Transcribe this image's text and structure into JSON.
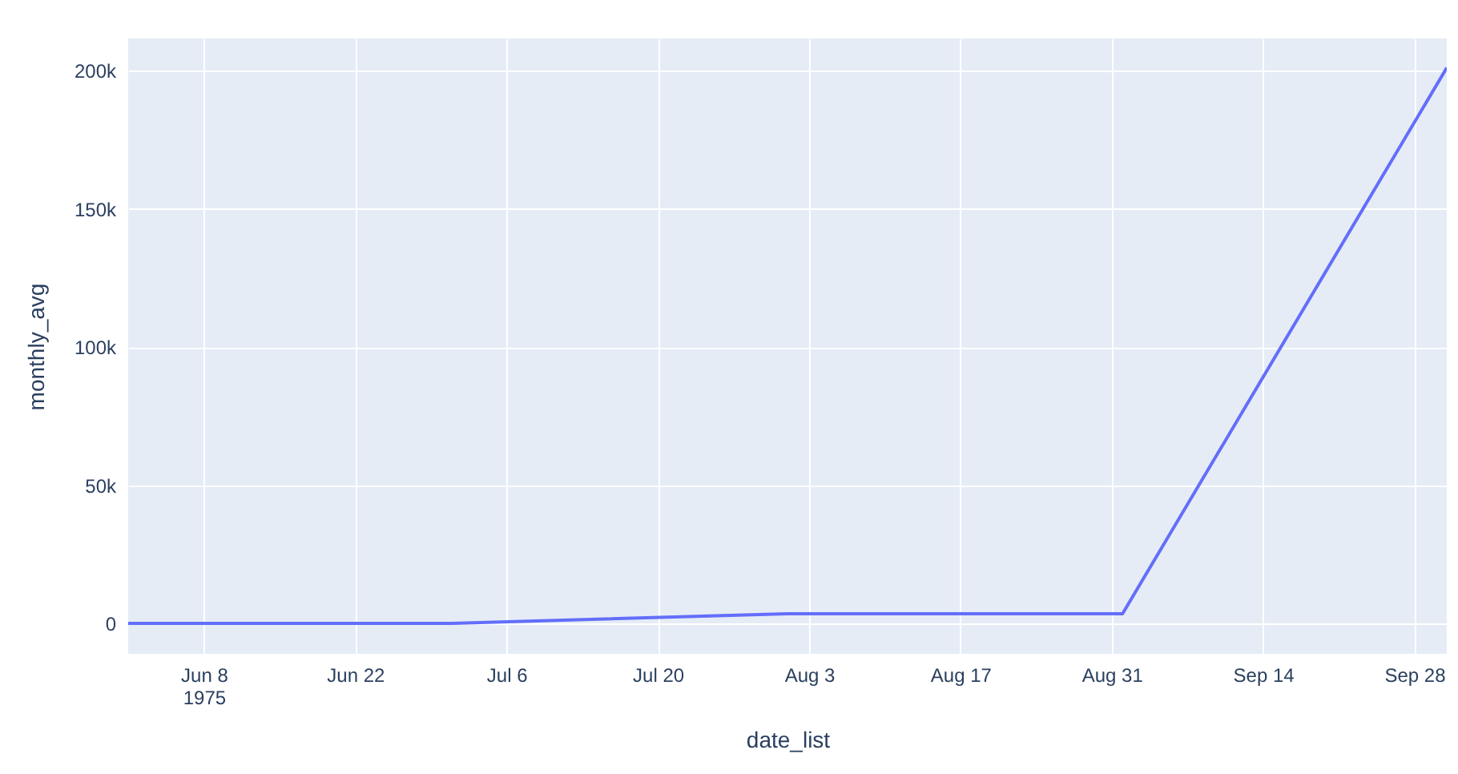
{
  "chart_data": {
    "type": "line",
    "xlabel": "date_list",
    "ylabel": "monthly_avg",
    "x": [
      "1975-06-01",
      "1975-07-01",
      "1975-08-01",
      "1975-09-01",
      "1975-10-01"
    ],
    "series": [
      {
        "color": "#636efa",
        "values": [
          0,
          0,
          3500,
          3500,
          201000
        ]
      }
    ],
    "xlim": [
      "1975-06-01",
      "1975-10-01"
    ],
    "xticks": [
      {
        "value": "1975-06-08",
        "label": "Jun 8\n1975"
      },
      {
        "value": "1975-06-22",
        "label": "Jun 22"
      },
      {
        "value": "1975-07-06",
        "label": "Jul 6"
      },
      {
        "value": "1975-07-20",
        "label": "Jul 20"
      },
      {
        "value": "1975-08-03",
        "label": "Aug 3"
      },
      {
        "value": "1975-08-17",
        "label": "Aug 17"
      },
      {
        "value": "1975-08-31",
        "label": "Aug 31"
      },
      {
        "value": "1975-09-14",
        "label": "Sep 14"
      },
      {
        "value": "1975-09-28",
        "label": "Sep 28"
      }
    ],
    "ylim": [
      -11000,
      211600
    ],
    "yticks": [
      0,
      {
        "value": 50000,
        "label": "50k"
      },
      {
        "value": 100000,
        "label": "100k"
      },
      {
        "value": 150000,
        "label": "150k"
      },
      {
        "value": 200000,
        "label": "200k"
      }
    ],
    "grid": true,
    "legend": false,
    "marker": "none",
    "line_style": "solid"
  }
}
